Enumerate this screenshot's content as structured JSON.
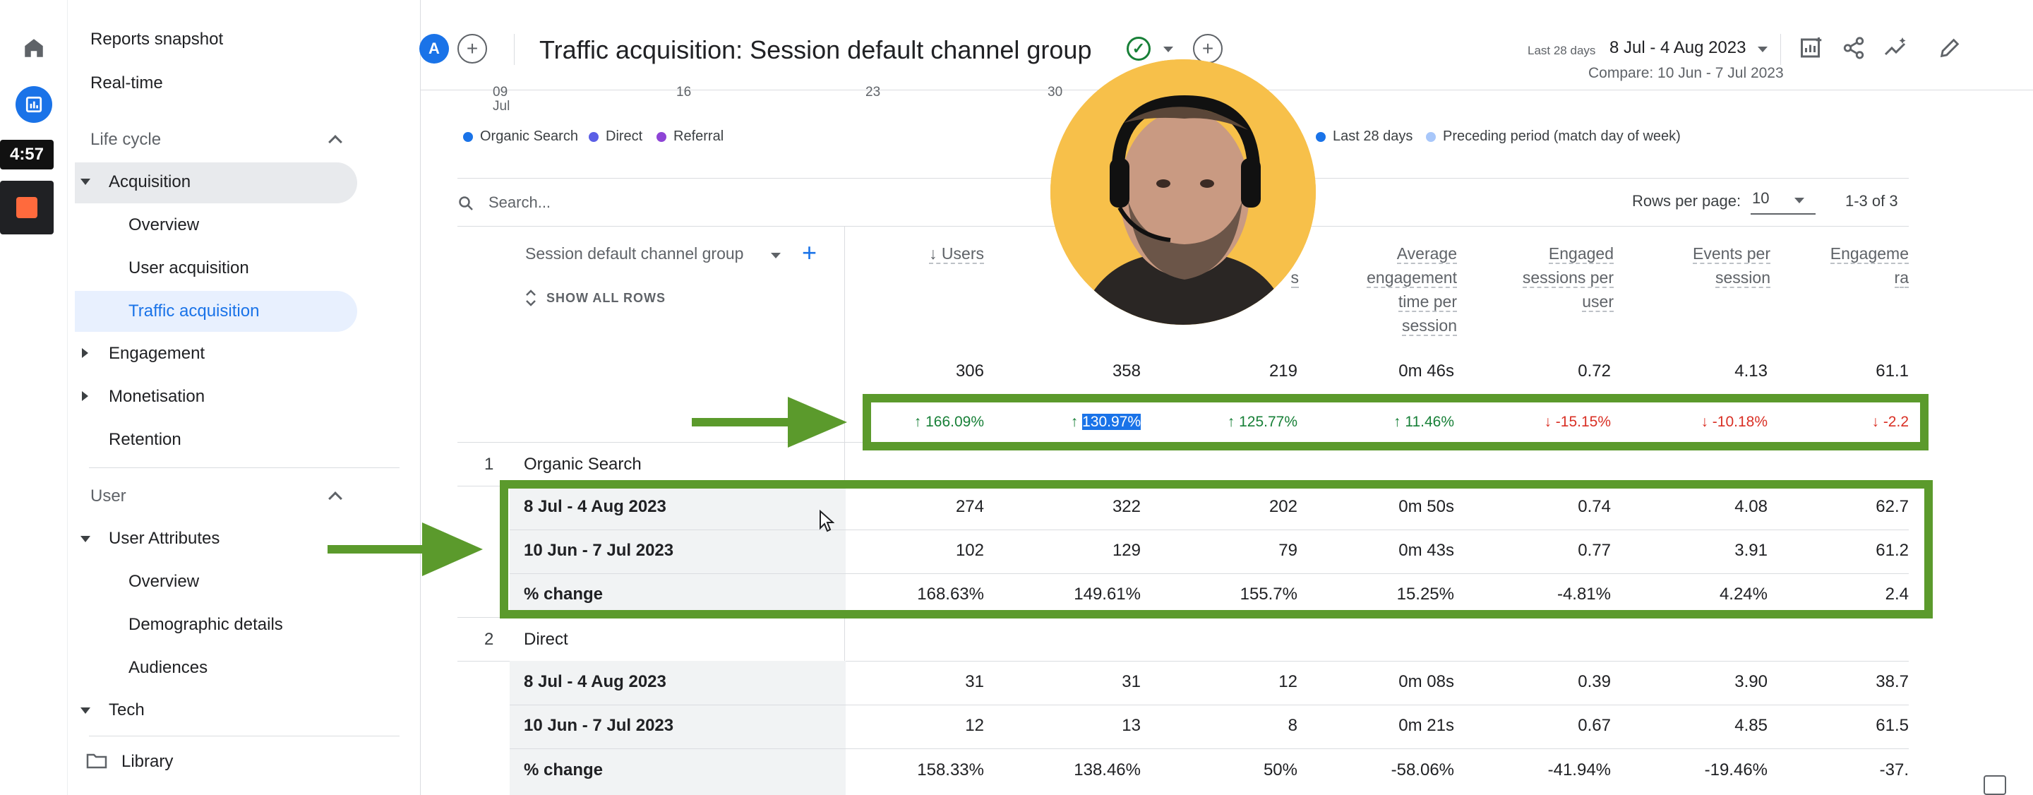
{
  "rail": {
    "timer": "4:57"
  },
  "sidebar": {
    "reports_snapshot": "Reports snapshot",
    "realtime": "Real-time",
    "lifecycle": "Life cycle",
    "acquisition": "Acquisition",
    "overview": "Overview",
    "user_acquisition": "User acquisition",
    "traffic_acquisition": "Traffic acquisition",
    "engagement": "Engagement",
    "monetisation": "Monetisation",
    "retention": "Retention",
    "user": "User",
    "user_attributes": "User Attributes",
    "overview2": "Overview",
    "demographic_details": "Demographic details",
    "audiences": "Audiences",
    "tech": "Tech",
    "library": "Library"
  },
  "header": {
    "avatar": "A",
    "title": "Traffic acquisition: Session default channel group",
    "date_prefix": "Last 28 days",
    "date_range": "8 Jul - 4 Aug 2023",
    "compare": "Compare: 10 Jun - 7 Jul 2023"
  },
  "chart": {
    "x_ticks": [
      "09",
      "16",
      "23",
      "30"
    ],
    "x_month": "Jul",
    "legend_left": [
      "Organic Search",
      "Direct",
      "Referral"
    ],
    "legend_right": [
      "Last 28 days",
      "Preceding period (match day of week)"
    ],
    "colors": {
      "organic": "#1a73e8",
      "direct": "#5b5fe6",
      "referral": "#8e44d6",
      "last28": "#1a73e8",
      "preceding": "#a8c7fa"
    }
  },
  "table": {
    "search_placeholder": "Search...",
    "rows_per_page_label": "Rows per page:",
    "rows_per_page": "10",
    "pager": "1-3 of 3",
    "dimension_header": "Session default channel group",
    "show_all_rows": "SHOW ALL ROWS",
    "columns": [
      {
        "l1": "↓ Users",
        "l2": "",
        "l3": "",
        "l4": ""
      },
      {
        "l1": "",
        "l2": "",
        "l3": "",
        "l4": ""
      },
      {
        "l1": "",
        "l2": "s",
        "l3": "",
        "l4": ""
      },
      {
        "l1": "Average",
        "l2": "engagement",
        "l3": "time per",
        "l4": "session"
      },
      {
        "l1": "Engaged",
        "l2": "sessions per",
        "l3": "user",
        "l4": ""
      },
      {
        "l1": "Events per",
        "l2": "session",
        "l3": "",
        "l4": ""
      },
      {
        "l1": "Engageme",
        "l2": "ra",
        "l3": "",
        "l4": ""
      }
    ],
    "totals": [
      "306",
      "358",
      "219",
      "0m 46s",
      "0.72",
      "4.13",
      "61.1"
    ],
    "total_changes": [
      "166.09%",
      "130.97%",
      "125.77%",
      "11.46%",
      "-15.15%",
      "-10.18%",
      "-2.2"
    ],
    "groups": [
      {
        "idx": "1",
        "name": "Organic Search",
        "rows": [
          {
            "label": "8 Jul - 4 Aug 2023",
            "values": [
              "274",
              "322",
              "202",
              "0m 50s",
              "0.74",
              "4.08",
              "62.7"
            ]
          },
          {
            "label": "10 Jun - 7 Jul 2023",
            "values": [
              "102",
              "129",
              "79",
              "0m 43s",
              "0.77",
              "3.91",
              "61.2"
            ]
          },
          {
            "label": "% change",
            "values": [
              "168.63%",
              "149.61%",
              "155.7%",
              "15.25%",
              "-4.81%",
              "4.24%",
              "2.4"
            ]
          }
        ]
      },
      {
        "idx": "2",
        "name": "Direct",
        "rows": [
          {
            "label": "8 Jul - 4 Aug 2023",
            "values": [
              "31",
              "31",
              "12",
              "0m 08s",
              "0.39",
              "3.90",
              "38.7"
            ]
          },
          {
            "label": "10 Jun - 7 Jul 2023",
            "values": [
              "12",
              "13",
              "8",
              "0m 21s",
              "0.67",
              "4.85",
              "61.5"
            ]
          },
          {
            "label": "% change",
            "values": [
              "158.33%",
              "138.46%",
              "50%",
              "-58.06%",
              "-41.94%",
              "-19.46%",
              "-37."
            ]
          }
        ]
      }
    ]
  }
}
